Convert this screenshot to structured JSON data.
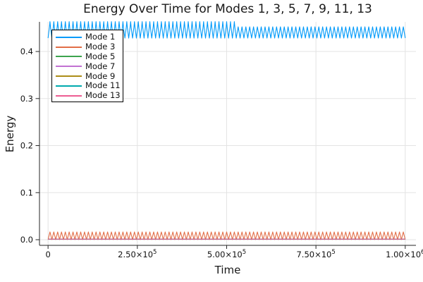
{
  "chart_data": {
    "type": "line",
    "title": "Energy Over Time for Modes 1, 3, 5, 7, 9, 11, 13",
    "xlabel": "Time",
    "ylabel": "Energy",
    "xlim": [
      -24000,
      1030000
    ],
    "ylim": [
      -0.012,
      0.463
    ],
    "x_range": [
      0,
      1000000
    ],
    "grid": true,
    "legend_position": "top-left",
    "background": "#ffffff",
    "grid_color": "#e3e3e3",
    "axis_color": "#262626",
    "xticks": {
      "values": [
        0,
        250000,
        500000,
        750000,
        1000000
      ],
      "labels": [
        "0",
        "2.50×10⁵",
        "5.00×10⁵",
        "7.50×10⁵",
        "1.00×10⁶"
      ]
    },
    "yticks": {
      "values": [
        0.0,
        0.1,
        0.2,
        0.3,
        0.4
      ],
      "labels": [
        "0.0",
        "0.1",
        "0.2",
        "0.3",
        "0.4"
      ]
    },
    "series": [
      {
        "name": "Mode 1",
        "color": "#009AFA",
        "pattern": "zigzag",
        "min": 0.4285,
        "max": 0.4525,
        "cycles": 93,
        "spike_max": 0.4635,
        "spike_until": 525000
      },
      {
        "name": "Mode 3",
        "color": "#E26E47",
        "pattern": "zigzag",
        "min": 0.0002,
        "max": 0.0165,
        "cycles": 93
      },
      {
        "name": "Mode 5",
        "color": "#3DA44E",
        "pattern": "flat",
        "value": 0.0012
      },
      {
        "name": "Mode 7",
        "color": "#C271D2",
        "pattern": "flat",
        "value": 0.0012
      },
      {
        "name": "Mode 9",
        "color": "#AC8D18",
        "pattern": "flat",
        "value": 0.0012
      },
      {
        "name": "Mode 11",
        "color": "#00AAAE",
        "pattern": "flat",
        "value": 0.0012
      },
      {
        "name": "Mode 13",
        "color": "#ED5D92",
        "pattern": "flat",
        "value": 0.0012
      }
    ]
  }
}
